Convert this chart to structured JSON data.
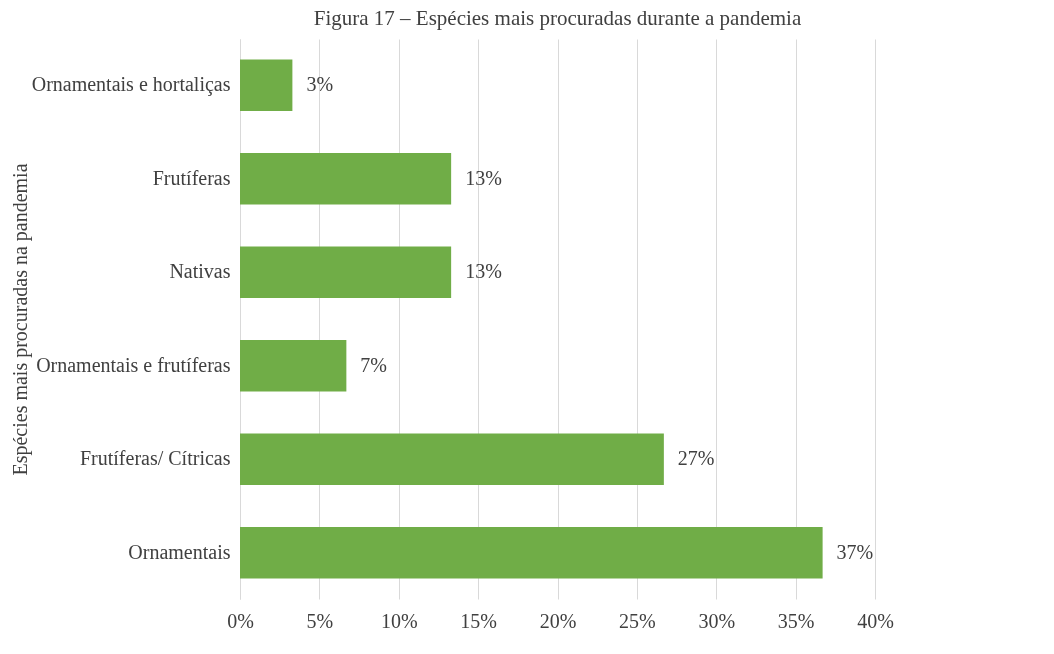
{
  "chart_data": {
    "type": "bar",
    "orientation": "horizontal",
    "title": "Figura 17 – Espécies mais procuradas durante a pandemia",
    "ylabel": "Espécies mais procuradas na pandemia",
    "categories": [
      "Ornamentais e hortaliças",
      "Frutíferas",
      "Nativas",
      "Ornamentais e frutíferas",
      "Frutíferas/ Cítricas",
      "Ornamentais"
    ],
    "values": [
      3.3,
      13.3,
      13.3,
      6.7,
      26.7,
      36.7
    ],
    "value_labels": [
      "3%",
      "13%",
      "13%",
      "7%",
      "27%",
      "37%"
    ],
    "color": "#70ad47",
    "xlim": [
      0,
      40
    ],
    "xticks": [
      {
        "value": 0,
        "label": "0%"
      },
      {
        "value": 5,
        "label": "5%"
      },
      {
        "value": 10,
        "label": "10%"
      },
      {
        "value": 15,
        "label": "15%"
      },
      {
        "value": 20,
        "label": "20%"
      },
      {
        "value": 25,
        "label": "25%"
      },
      {
        "value": 30,
        "label": "30%"
      },
      {
        "value": 35,
        "label": "35%"
      },
      {
        "value": 40,
        "label": "40%"
      }
    ],
    "grid": "x"
  }
}
